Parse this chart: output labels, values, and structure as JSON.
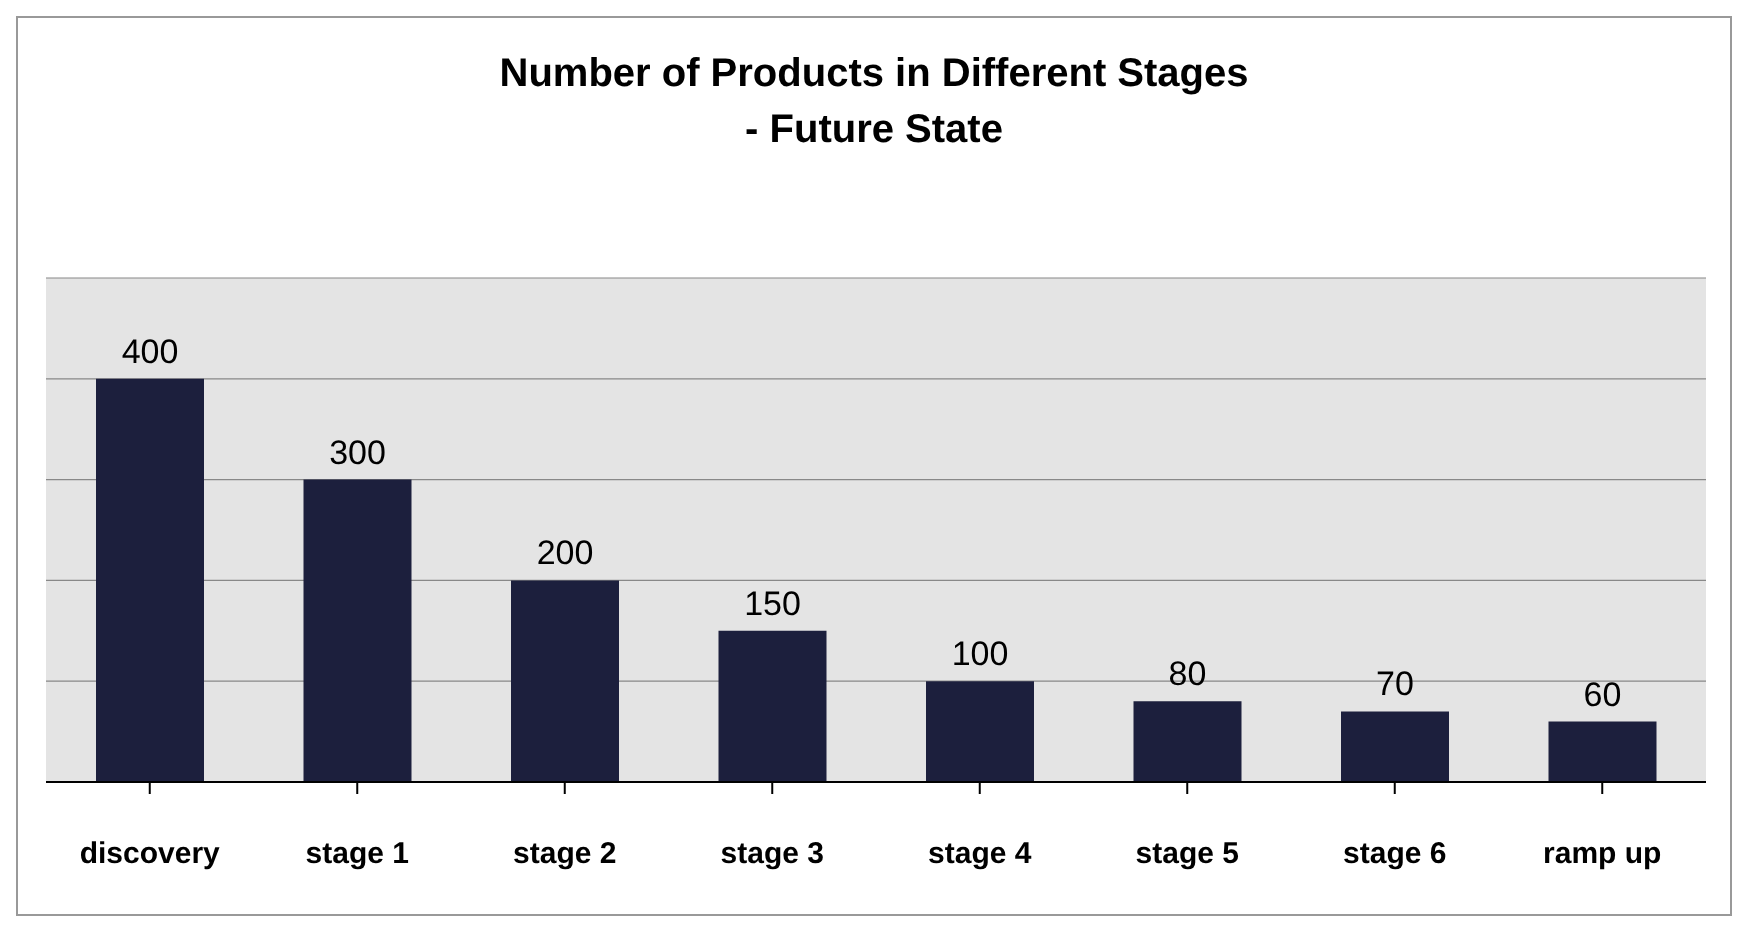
{
  "chart_data": {
    "type": "bar",
    "title": "Number of Products in Different Stages\n- Future State",
    "categories": [
      "discovery",
      "stage 1",
      "stage 2",
      "stage 3",
      "stage 4",
      "stage 5",
      "stage 6",
      "ramp up"
    ],
    "values": [
      400,
      300,
      200,
      150,
      100,
      80,
      70,
      60
    ],
    "color": "#1c1f3d",
    "ylim": [
      0,
      500
    ],
    "yticks": [
      {
        "value": 0,
        "label": null
      },
      {
        "value": 100,
        "label": null
      },
      {
        "value": 200,
        "label": null
      },
      {
        "value": 300,
        "label": null
      },
      {
        "value": 400,
        "label": null
      },
      {
        "value": 500,
        "label": null
      }
    ],
    "grid": "y",
    "tick_labels": "x",
    "data_labels": true
  }
}
